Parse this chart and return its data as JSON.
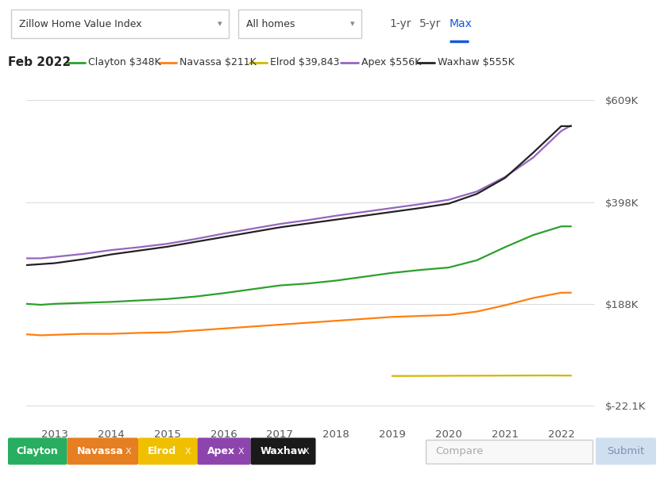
{
  "title_bar": {
    "zillow_label": "Zillow Home Value Index",
    "homes_label": "All homes",
    "tabs": [
      "1-yr",
      "5-yr",
      "Max"
    ],
    "active_tab": "Max"
  },
  "legend_date": "Feb 2022",
  "legend_entries": [
    {
      "label": "Clayton $348K",
      "color": "#2ca02c"
    },
    {
      "label": "Navassa $211K",
      "color": "#ff7f0e"
    },
    {
      "label": "Elrod $39,843",
      "color": "#d4b700"
    },
    {
      "label": "Apex $556K",
      "color": "#9467bd"
    },
    {
      "label": "Waxhaw $555K",
      "color": "#222222"
    }
  ],
  "yticks": [
    609000,
    398000,
    188000,
    -22100
  ],
  "ytick_labels": [
    "$609K",
    "$398K",
    "$188K",
    "$-22.1K"
  ],
  "ylim": [
    -55000,
    650000
  ],
  "xlim": [
    2012.5,
    2022.6
  ],
  "xtick_positions": [
    2013,
    2014,
    2015,
    2016,
    2017,
    2018,
    2019,
    2020,
    2021,
    2022
  ],
  "xtick_labels": [
    "2013",
    "2014",
    "2015",
    "2016",
    "2017",
    "2018",
    "2019",
    "2020",
    "2021",
    "2022"
  ],
  "series": {
    "Clayton": {
      "color": "#2ca02c",
      "x": [
        2012.17,
        2012.5,
        2012.75,
        2013.0,
        2013.5,
        2014.0,
        2014.5,
        2015.0,
        2015.5,
        2016.0,
        2016.5,
        2017.0,
        2017.5,
        2018.0,
        2018.5,
        2019.0,
        2019.5,
        2020.0,
        2020.5,
        2021.0,
        2021.5,
        2022.0,
        2022.17
      ],
      "y": [
        190000,
        188000,
        186000,
        188000,
        190000,
        192000,
        195000,
        198000,
        203000,
        210000,
        218000,
        226000,
        230000,
        236000,
        244000,
        252000,
        258000,
        263000,
        278000,
        305000,
        330000,
        348000,
        348000
      ]
    },
    "Navassa": {
      "color": "#ff7f0e",
      "x": [
        2012.17,
        2012.5,
        2012.75,
        2013.0,
        2013.5,
        2014.0,
        2014.5,
        2015.0,
        2015.5,
        2016.0,
        2016.5,
        2017.0,
        2017.5,
        2018.0,
        2018.5,
        2019.0,
        2019.5,
        2020.0,
        2020.5,
        2021.0,
        2021.5,
        2022.0,
        2022.17
      ],
      "y": [
        128000,
        125000,
        123000,
        124000,
        126000,
        126000,
        128000,
        129000,
        133000,
        137000,
        141000,
        145000,
        149000,
        153000,
        157000,
        161000,
        163000,
        165000,
        172000,
        185000,
        200000,
        211000,
        211000
      ]
    },
    "Elrod": {
      "color": "#d4b700",
      "x": [
        2019.0,
        2019.25,
        2019.5,
        2019.75,
        2020.0,
        2020.25,
        2020.5,
        2020.75,
        2021.0,
        2021.25,
        2021.5,
        2021.75,
        2022.0,
        2022.17
      ],
      "y": [
        39000,
        39000,
        39100,
        39200,
        39400,
        39500,
        39600,
        39700,
        39800,
        39900,
        40000,
        40100,
        39843,
        39843
      ]
    },
    "Apex": {
      "color": "#9467bd",
      "x": [
        2012.17,
        2012.5,
        2012.75,
        2013.0,
        2013.5,
        2014.0,
        2014.5,
        2015.0,
        2015.5,
        2016.0,
        2016.5,
        2017.0,
        2017.5,
        2018.0,
        2018.5,
        2019.0,
        2019.5,
        2020.0,
        2020.5,
        2021.0,
        2021.5,
        2022.0,
        2022.17
      ],
      "y": [
        285000,
        282000,
        282000,
        285000,
        291000,
        299000,
        305000,
        312000,
        322000,
        333000,
        343000,
        353000,
        361000,
        370000,
        378000,
        386000,
        394000,
        403000,
        420000,
        450000,
        490000,
        545000,
        556000
      ]
    },
    "Waxhaw": {
      "color": "#222222",
      "x": [
        2012.17,
        2012.5,
        2012.75,
        2013.0,
        2013.5,
        2014.0,
        2014.5,
        2015.0,
        2015.5,
        2016.0,
        2016.5,
        2017.0,
        2017.5,
        2018.0,
        2018.5,
        2019.0,
        2019.5,
        2020.0,
        2020.5,
        2021.0,
        2021.5,
        2022.0,
        2022.17
      ],
      "y": [
        268000,
        268000,
        270000,
        272000,
        280000,
        290000,
        298000,
        306000,
        316000,
        326000,
        336000,
        346000,
        354000,
        362000,
        370000,
        378000,
        386000,
        395000,
        415000,
        448000,
        500000,
        555000,
        555000
      ]
    }
  },
  "background_color": "#ffffff",
  "grid_color": "#dddddd",
  "top_bar_color": "#f0f0f0",
  "bottom_bar_color": "#eeeeee",
  "tag_info": [
    {
      "name": "Clayton",
      "color": "#27ae60",
      "has_x": false
    },
    {
      "name": "Navassa",
      "color": "#e67e22",
      "has_x": true
    },
    {
      "name": "Elrod",
      "color": "#f0c000",
      "has_x": true
    },
    {
      "name": "Apex",
      "color": "#8e44ad",
      "has_x": true
    },
    {
      "name": "Waxhaw",
      "color": "#1a1a1a",
      "has_x": true
    }
  ]
}
